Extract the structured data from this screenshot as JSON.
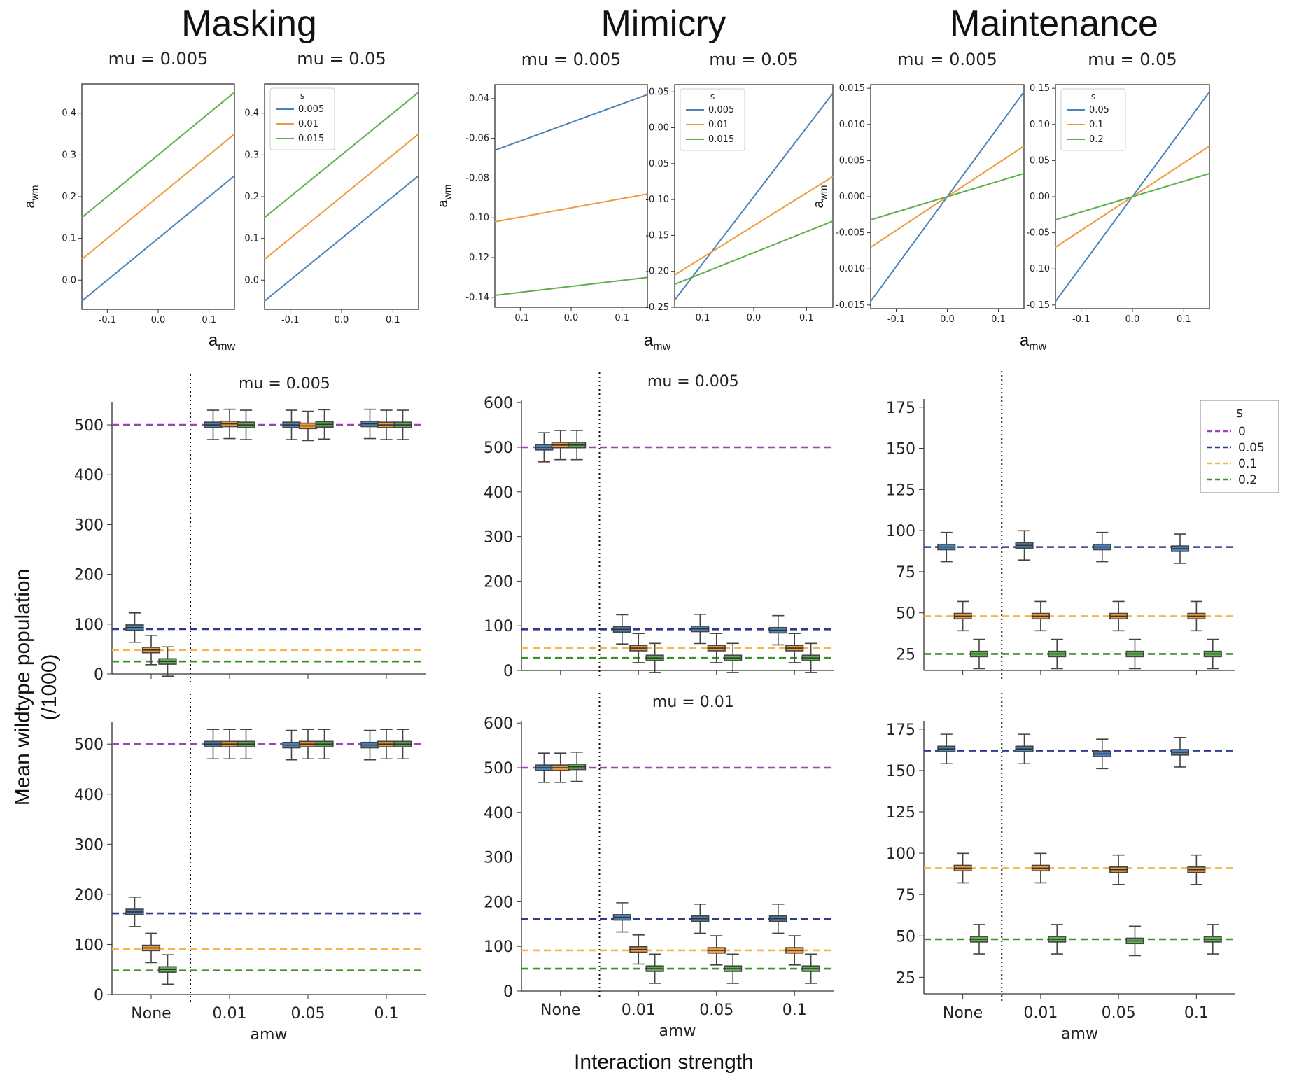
{
  "titles": {
    "masking": "Masking",
    "mimicry": "Mimicry",
    "maintenance": "Maintenance"
  },
  "labels": {
    "y_shared": "Mean wildtype population",
    "y_shared_sub": "(/1000)",
    "x_shared": "Interaction strength"
  },
  "colors": {
    "line_blue": "#4b83b8",
    "line_orange": "#ef9a3c",
    "line_green": "#5fae4e",
    "dash_purple": "#9b45b5",
    "dash_navy": "#2f3a8f",
    "dash_gold": "#f2b84b",
    "dash_green": "#3e8f2e"
  },
  "chart_data": [
    {
      "id": "masking-top-left",
      "type": "line",
      "title": "mu = 0.005",
      "xlabel": "",
      "ylabel": "a_wm",
      "xlim": [
        -0.15,
        0.15
      ],
      "ylim": [
        -0.07,
        0.47
      ],
      "xticks": [
        "-0.1",
        "0.0",
        "0.1"
      ],
      "yticks": [
        "0.0",
        "0.1",
        "0.2",
        "0.3",
        "0.4"
      ],
      "legend": null,
      "series": [
        {
          "name": "",
          "x": [
            -0.15,
            0.15
          ],
          "y": [
            -0.05,
            0.25
          ]
        },
        {
          "name": "",
          "x": [
            -0.15,
            0.15
          ],
          "y": [
            0.05,
            0.35
          ]
        },
        {
          "name": "",
          "x": [
            -0.15,
            0.15
          ],
          "y": [
            0.15,
            0.45
          ]
        }
      ]
    },
    {
      "id": "masking-top-right",
      "type": "line",
      "title": "mu = 0.05",
      "xlabel": "",
      "ylabel": "",
      "xlim": [
        -0.15,
        0.15
      ],
      "ylim": [
        -0.07,
        0.47
      ],
      "xticks": [
        "-0.1",
        "0.0",
        "0.1"
      ],
      "yticks": [
        "0.0",
        "0.1",
        "0.2",
        "0.3",
        "0.4"
      ],
      "legend": {
        "title": "s",
        "entries": [
          "0.005",
          "0.01",
          "0.015"
        ],
        "position": "top-left"
      },
      "series": [
        {
          "name": "0.005",
          "x": [
            -0.15,
            0.15
          ],
          "y": [
            -0.05,
            0.25
          ]
        },
        {
          "name": "0.01",
          "x": [
            -0.15,
            0.15
          ],
          "y": [
            0.05,
            0.35
          ]
        },
        {
          "name": "0.015",
          "x": [
            -0.15,
            0.15
          ],
          "y": [
            0.15,
            0.45
          ]
        }
      ]
    },
    {
      "id": "mimicry-top-left",
      "type": "line",
      "title": "mu = 0.005",
      "xlabel": "",
      "ylabel": "a_wm",
      "xlim": [
        -0.15,
        0.15
      ],
      "ylim": [
        -0.145,
        -0.033
      ],
      "xticks": [
        "-0.1",
        "0.0",
        "0.1"
      ],
      "yticks": [
        "-0.04",
        "-0.06",
        "-0.08",
        "-0.10",
        "-0.12",
        "-0.14"
      ],
      "legend": null,
      "series": [
        {
          "name": "",
          "x": [
            -0.15,
            0.15
          ],
          "y": [
            -0.066,
            -0.038
          ]
        },
        {
          "name": "",
          "x": [
            -0.15,
            0.15
          ],
          "y": [
            -0.102,
            -0.088
          ]
        },
        {
          "name": "",
          "x": [
            -0.15,
            0.15
          ],
          "y": [
            -0.139,
            -0.13
          ]
        }
      ]
    },
    {
      "id": "mimicry-top-right",
      "type": "line",
      "title": "mu = 0.05",
      "xlabel": "",
      "ylabel": "",
      "xlim": [
        -0.15,
        0.15
      ],
      "ylim": [
        -0.25,
        0.06
      ],
      "xticks": [
        "-0.1",
        "0.0",
        "0.1"
      ],
      "yticks": [
        "0.05",
        "0.00",
        "-0.05",
        "-0.10",
        "-0.15",
        "-0.20",
        "-0.25"
      ],
      "legend": {
        "title": "s",
        "entries": [
          "0.005",
          "0.01",
          "0.015"
        ],
        "position": "top-left"
      },
      "series": [
        {
          "name": "0.005",
          "x": [
            -0.15,
            0.15
          ],
          "y": [
            -0.24,
            0.048
          ]
        },
        {
          "name": "0.01",
          "x": [
            -0.15,
            0.15
          ],
          "y": [
            -0.205,
            -0.068
          ]
        },
        {
          "name": "0.015",
          "x": [
            -0.15,
            0.15
          ],
          "y": [
            -0.218,
            -0.13
          ]
        }
      ]
    },
    {
      "id": "maintenance-top-left",
      "type": "line",
      "title": "mu = 0.005",
      "xlabel": "",
      "ylabel": "a_wm",
      "xlim": [
        -0.15,
        0.15
      ],
      "ylim": [
        -0.0155,
        0.0155
      ],
      "xticks": [
        "-0.1",
        "0.0",
        "0.1"
      ],
      "yticks": [
        "0.015",
        "0.010",
        "0.005",
        "0.000",
        "-0.005",
        "-0.010",
        "-0.015"
      ],
      "legend": null,
      "series": [
        {
          "name": "",
          "x": [
            -0.15,
            0.15
          ],
          "y": [
            -0.0145,
            0.0145
          ]
        },
        {
          "name": "",
          "x": [
            -0.15,
            0.15
          ],
          "y": [
            -0.007,
            0.007
          ]
        },
        {
          "name": "",
          "x": [
            -0.15,
            0.15
          ],
          "y": [
            -0.0032,
            0.0032
          ]
        }
      ]
    },
    {
      "id": "maintenance-top-right",
      "type": "line",
      "title": "mu = 0.05",
      "xlabel": "",
      "ylabel": "",
      "xlim": [
        -0.15,
        0.15
      ],
      "ylim": [
        -0.155,
        0.155
      ],
      "xticks": [
        "-0.1",
        "0.0",
        "0.1"
      ],
      "yticks": [
        "0.15",
        "0.10",
        "0.05",
        "0.00",
        "-0.05",
        "-0.10",
        "-0.15"
      ],
      "legend": {
        "title": "s",
        "entries": [
          "0.05",
          "0.1",
          "0.2"
        ],
        "position": "top-left"
      },
      "series": [
        {
          "name": "0.05",
          "x": [
            -0.15,
            0.15
          ],
          "y": [
            -0.145,
            0.145
          ]
        },
        {
          "name": "0.1",
          "x": [
            -0.15,
            0.15
          ],
          "y": [
            -0.07,
            0.07
          ]
        },
        {
          "name": "0.2",
          "x": [
            -0.15,
            0.15
          ],
          "y": [
            -0.032,
            0.032
          ]
        }
      ]
    },
    {
      "id": "masking-mid",
      "type": "box",
      "title": "mu = 0.005",
      "xlabel": "",
      "ylabel": "",
      "categories": [
        "None",
        "0.01",
        "0.05",
        "0.1"
      ],
      "ylim": [
        0,
        545
      ],
      "yticks": [
        "0",
        "100",
        "200",
        "300",
        "400",
        "500"
      ],
      "hlines": [
        {
          "s": "0",
          "y": 500
        },
        {
          "s": "0.05",
          "y": 90
        },
        {
          "s": "0.1",
          "y": 48
        },
        {
          "s": "0.2",
          "y": 25
        }
      ],
      "boxes": [
        {
          "cat": 0,
          "off": -0.28,
          "median": 93
        },
        {
          "cat": 0,
          "off": 0,
          "median": 48
        },
        {
          "cat": 0,
          "off": 0.28,
          "median": 25
        },
        {
          "cat": 1,
          "off": -0.28,
          "median": 500
        },
        {
          "cat": 1,
          "off": 0,
          "median": 502
        },
        {
          "cat": 1,
          "off": 0.28,
          "median": 500
        },
        {
          "cat": 2,
          "off": -0.28,
          "median": 500
        },
        {
          "cat": 2,
          "off": 0,
          "median": 498
        },
        {
          "cat": 2,
          "off": 0.28,
          "median": 501
        },
        {
          "cat": 3,
          "off": -0.28,
          "median": 502
        },
        {
          "cat": 3,
          "off": 0,
          "median": 500
        },
        {
          "cat": 3,
          "off": 0.28,
          "median": 500
        }
      ]
    },
    {
      "id": "mimicry-mid",
      "type": "box",
      "title": "mu = 0.005",
      "xlabel": "",
      "ylabel": "",
      "categories": [
        "None",
        "0.01",
        "0.05",
        "0.1"
      ],
      "ylim": [
        0,
        605
      ],
      "yticks": [
        "0",
        "100",
        "200",
        "300",
        "400",
        "500",
        "600"
      ],
      "hlines": [
        {
          "s": "0",
          "y": 500
        },
        {
          "s": "0.05",
          "y": 92
        },
        {
          "s": "0.1",
          "y": 50
        },
        {
          "s": "0.2",
          "y": 28
        }
      ],
      "boxes": [
        {
          "cat": 0,
          "off": -0.28,
          "median": 500
        },
        {
          "cat": 0,
          "off": 0,
          "median": 505
        },
        {
          "cat": 0,
          "off": 0.28,
          "median": 505
        },
        {
          "cat": 1,
          "off": -0.28,
          "median": 92
        },
        {
          "cat": 1,
          "off": 0,
          "median": 50
        },
        {
          "cat": 1,
          "off": 0.28,
          "median": 28
        },
        {
          "cat": 2,
          "off": -0.28,
          "median": 93
        },
        {
          "cat": 2,
          "off": 0,
          "median": 50
        },
        {
          "cat": 2,
          "off": 0.28,
          "median": 28
        },
        {
          "cat": 3,
          "off": -0.28,
          "median": 90
        },
        {
          "cat": 3,
          "off": 0,
          "median": 50
        },
        {
          "cat": 3,
          "off": 0.28,
          "median": 28
        }
      ]
    },
    {
      "id": "maintenance-mid",
      "type": "box",
      "title": "",
      "xlabel": "",
      "ylabel": "",
      "categories": [
        "None",
        "0.01",
        "0.05",
        "0.1"
      ],
      "ylim": [
        15,
        180
      ],
      "yticks": [
        "25",
        "50",
        "75",
        "100",
        "125",
        "150",
        "175"
      ],
      "legend": {
        "title": "s",
        "entries": [
          "0",
          "0.05",
          "0.1",
          "0.2"
        ],
        "position": "top-right"
      },
      "hlines": [
        {
          "s": "0.05",
          "y": 90
        },
        {
          "s": "0.1",
          "y": 48
        },
        {
          "s": "0.2",
          "y": 25
        }
      ],
      "boxes": [
        {
          "cat": 0,
          "off": -0.28,
          "median": 90
        },
        {
          "cat": 0,
          "off": 0,
          "median": 48
        },
        {
          "cat": 0,
          "off": 0.28,
          "median": 25
        },
        {
          "cat": 1,
          "off": -0.28,
          "median": 91
        },
        {
          "cat": 1,
          "off": 0,
          "median": 48
        },
        {
          "cat": 1,
          "off": 0.28,
          "median": 25
        },
        {
          "cat": 2,
          "off": -0.28,
          "median": 90
        },
        {
          "cat": 2,
          "off": 0,
          "median": 48
        },
        {
          "cat": 2,
          "off": 0.28,
          "median": 25
        },
        {
          "cat": 3,
          "off": -0.28,
          "median": 89
        },
        {
          "cat": 3,
          "off": 0,
          "median": 48
        },
        {
          "cat": 3,
          "off": 0.28,
          "median": 25
        }
      ]
    },
    {
      "id": "masking-bottom",
      "type": "box",
      "title": "",
      "xlabel": "amw",
      "ylabel": "",
      "categories": [
        "None",
        "0.01",
        "0.05",
        "0.1"
      ],
      "ylim": [
        0,
        545
      ],
      "yticks": [
        "0",
        "100",
        "200",
        "300",
        "400",
        "500"
      ],
      "hlines": [
        {
          "s": "0",
          "y": 500
        },
        {
          "s": "0.05",
          "y": 162
        },
        {
          "s": "0.1",
          "y": 91
        },
        {
          "s": "0.2",
          "y": 48
        }
      ],
      "boxes": [
        {
          "cat": 0,
          "off": -0.28,
          "median": 165
        },
        {
          "cat": 0,
          "off": 0,
          "median": 93
        },
        {
          "cat": 0,
          "off": 0.28,
          "median": 50
        },
        {
          "cat": 1,
          "off": -0.28,
          "median": 500
        },
        {
          "cat": 1,
          "off": 0,
          "median": 500
        },
        {
          "cat": 1,
          "off": 0.28,
          "median": 500
        },
        {
          "cat": 2,
          "off": -0.28,
          "median": 498
        },
        {
          "cat": 2,
          "off": 0,
          "median": 500
        },
        {
          "cat": 2,
          "off": 0.28,
          "median": 500
        },
        {
          "cat": 3,
          "off": -0.28,
          "median": 498
        },
        {
          "cat": 3,
          "off": 0,
          "median": 500
        },
        {
          "cat": 3,
          "off": 0.28,
          "median": 500
        }
      ]
    },
    {
      "id": "mimicry-bottom",
      "type": "box",
      "title": "mu = 0.01",
      "xlabel": "amw",
      "ylabel": "",
      "categories": [
        "None",
        "0.01",
        "0.05",
        "0.1"
      ],
      "ylim": [
        0,
        605
      ],
      "yticks": [
        "0",
        "100",
        "200",
        "300",
        "400",
        "500",
        "600"
      ],
      "hlines": [
        {
          "s": "0",
          "y": 500
        },
        {
          "s": "0.05",
          "y": 162
        },
        {
          "s": "0.1",
          "y": 91
        },
        {
          "s": "0.2",
          "y": 50
        }
      ],
      "boxes": [
        {
          "cat": 0,
          "off": -0.28,
          "median": 500
        },
        {
          "cat": 0,
          "off": 0,
          "median": 500
        },
        {
          "cat": 0,
          "off": 0.28,
          "median": 502
        },
        {
          "cat": 1,
          "off": -0.28,
          "median": 165
        },
        {
          "cat": 1,
          "off": 0,
          "median": 93
        },
        {
          "cat": 1,
          "off": 0.28,
          "median": 50
        },
        {
          "cat": 2,
          "off": -0.28,
          "median": 162
        },
        {
          "cat": 2,
          "off": 0,
          "median": 91
        },
        {
          "cat": 2,
          "off": 0.28,
          "median": 50
        },
        {
          "cat": 3,
          "off": -0.28,
          "median": 162
        },
        {
          "cat": 3,
          "off": 0,
          "median": 91
        },
        {
          "cat": 3,
          "off": 0.28,
          "median": 50
        }
      ]
    },
    {
      "id": "maintenance-bottom",
      "type": "box",
      "title": "",
      "xlabel": "amw",
      "ylabel": "",
      "categories": [
        "None",
        "0.01",
        "0.05",
        "0.1"
      ],
      "ylim": [
        15,
        180
      ],
      "yticks": [
        "25",
        "50",
        "75",
        "100",
        "125",
        "150",
        "175"
      ],
      "hlines": [
        {
          "s": "0.05",
          "y": 162
        },
        {
          "s": "0.1",
          "y": 91
        },
        {
          "s": "0.2",
          "y": 48
        }
      ],
      "boxes": [
        {
          "cat": 0,
          "off": -0.28,
          "median": 163
        },
        {
          "cat": 0,
          "off": 0,
          "median": 91
        },
        {
          "cat": 0,
          "off": 0.28,
          "median": 48
        },
        {
          "cat": 1,
          "off": -0.28,
          "median": 163
        },
        {
          "cat": 1,
          "off": 0,
          "median": 91
        },
        {
          "cat": 1,
          "off": 0.28,
          "median": 48
        },
        {
          "cat": 2,
          "off": -0.28,
          "median": 160
        },
        {
          "cat": 2,
          "off": 0,
          "median": 90
        },
        {
          "cat": 2,
          "off": 0.28,
          "median": 47
        },
        {
          "cat": 3,
          "off": -0.28,
          "median": 161
        },
        {
          "cat": 3,
          "off": 0,
          "median": 90
        },
        {
          "cat": 3,
          "off": 0.28,
          "median": 48
        }
      ]
    }
  ]
}
